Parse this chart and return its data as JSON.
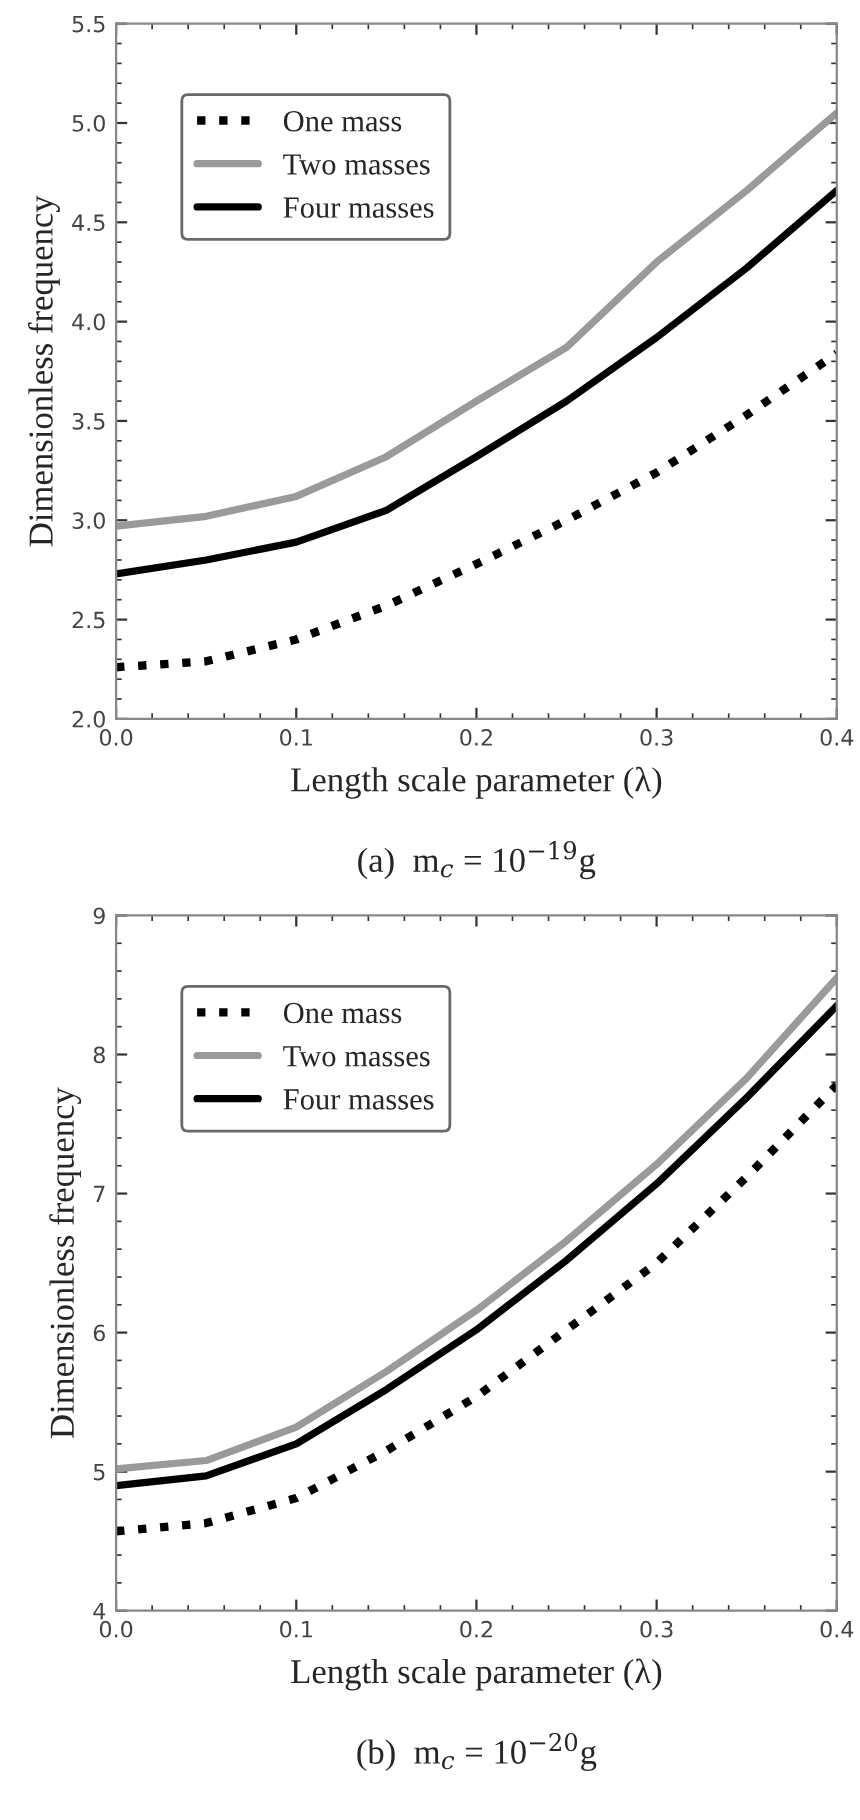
{
  "chart_data": [
    {
      "type": "line",
      "title": "(a)  m$_{c}$ = 10$^{−19}$g",
      "xlabel": "Length scale parameter (λ)",
      "ylabel": "Dimensionless frequency",
      "x": [
        0,
        0.05,
        0.1,
        0.15,
        0.2,
        0.25,
        0.3,
        0.35,
        0.4
      ],
      "series": [
        {
          "name": "One mass",
          "color": "#000000",
          "line_style": "dotted",
          "values": [
            2.26,
            2.29,
            2.4,
            2.57,
            2.78,
            3.0,
            3.24,
            3.53,
            3.84
          ]
        },
        {
          "name": "Two masses",
          "color": "#9a9a9a",
          "line_style": "solid",
          "values": [
            2.97,
            3.02,
            3.12,
            3.32,
            3.6,
            3.87,
            4.3,
            4.66,
            5.05
          ]
        },
        {
          "name": "Four masses",
          "color": "#000000",
          "line_style": "solid",
          "values": [
            2.73,
            2.8,
            2.89,
            3.05,
            3.32,
            3.6,
            3.92,
            4.27,
            4.66
          ]
        }
      ],
      "xlim": [
        0,
        0.4
      ],
      "xticks": [
        {
          "value": 0,
          "label": "0.0"
        },
        0.1,
        0.2,
        0.3,
        0.4
      ],
      "ylim": [
        2.0,
        5.5
      ],
      "yticks": [
        {
          "value": 2,
          "label": "2.0"
        },
        2.5,
        {
          "value": 3,
          "label": "3.0"
        },
        3.5,
        {
          "value": 4,
          "label": "4.0"
        },
        4.5,
        {
          "value": 5,
          "label": "5.0"
        },
        5.5
      ],
      "grid": false,
      "legend": "top left",
      "marker": "none"
    },
    {
      "type": "line",
      "title": "(b)  m$_{c}$ = 10$^{−20}$g",
      "xlabel": "Length scale parameter (λ)",
      "ylabel": "Dimensionless frequency",
      "x": [
        0,
        0.05,
        0.1,
        0.15,
        0.2,
        0.25,
        0.3,
        0.35,
        0.4
      ],
      "series": [
        {
          "name": "One mass",
          "color": "#000000",
          "line_style": "dotted",
          "values": [
            4.57,
            4.63,
            4.81,
            5.15,
            5.54,
            6.02,
            6.5,
            7.12,
            7.78
          ]
        },
        {
          "name": "Two masses",
          "color": "#9a9a9a",
          "line_style": "solid",
          "values": [
            5.02,
            5.08,
            5.32,
            5.72,
            6.16,
            6.66,
            7.21,
            7.83,
            8.55
          ]
        },
        {
          "name": "Four masses",
          "color": "#000000",
          "line_style": "solid",
          "values": [
            4.9,
            4.97,
            5.2,
            5.59,
            6.02,
            6.52,
            7.07,
            7.69,
            8.35
          ]
        }
      ],
      "xlim": [
        0,
        0.4
      ],
      "xticks": [
        {
          "value": 0,
          "label": "0.0"
        },
        0.1,
        0.2,
        0.3,
        0.4
      ],
      "ylim": [
        4,
        9
      ],
      "yticks": [
        4,
        5,
        6,
        7,
        8,
        9
      ],
      "grid": false,
      "legend": "top left",
      "marker": "none"
    }
  ]
}
